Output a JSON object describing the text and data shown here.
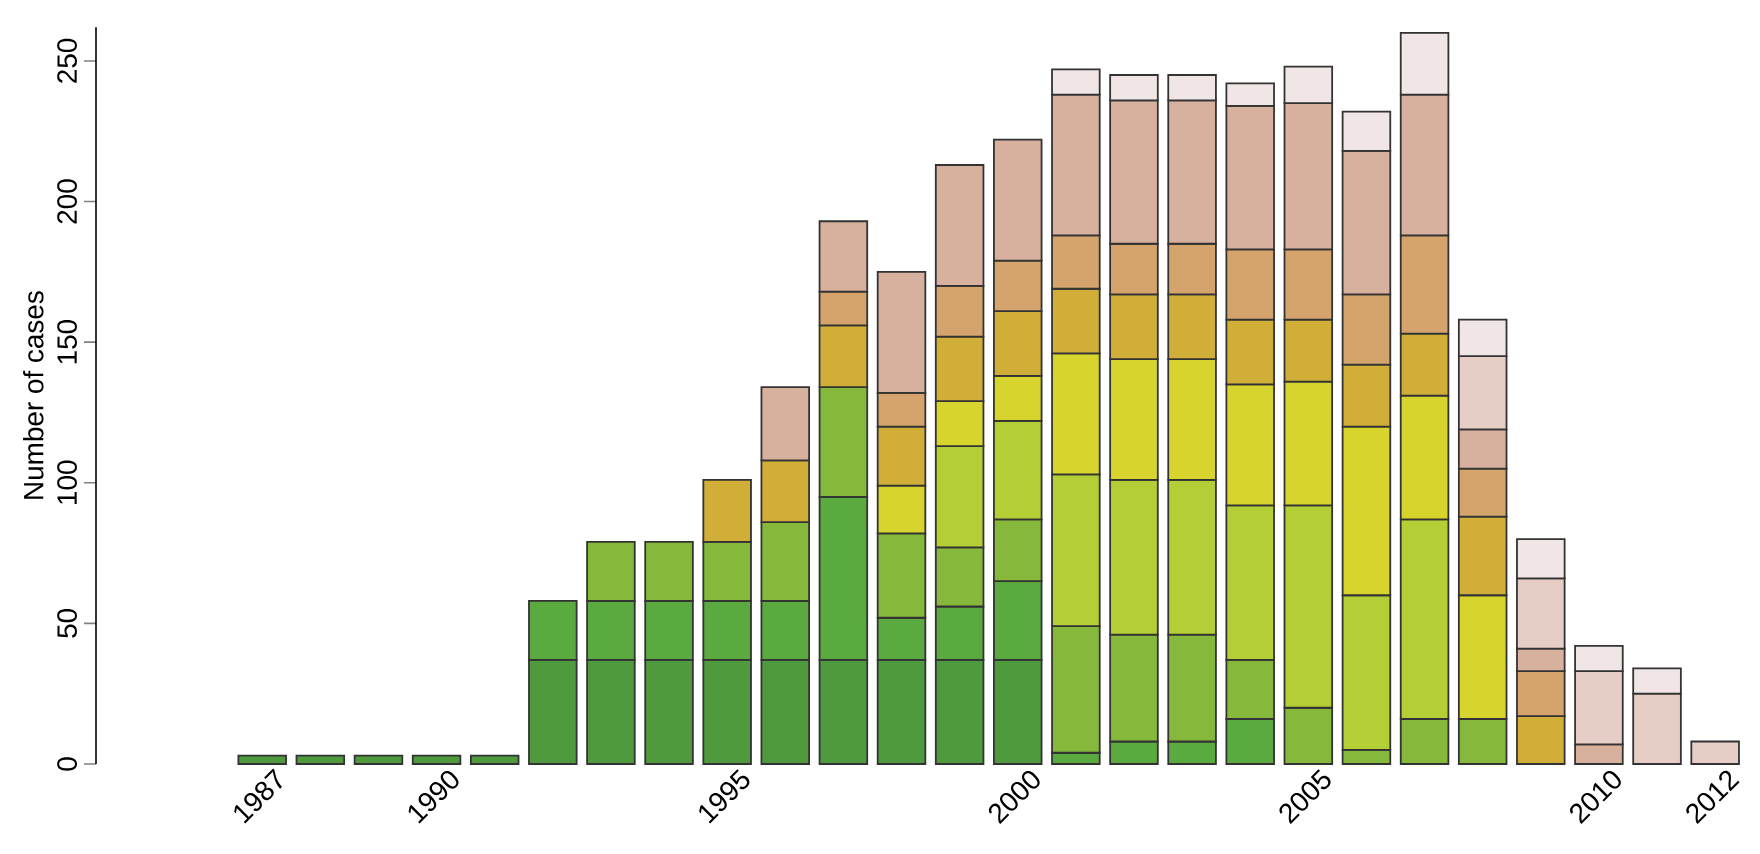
{
  "chart_data": {
    "type": "bar",
    "stacked": true,
    "ylabel": "Number of cases",
    "ylim": [
      0,
      262
    ],
    "yticks": [
      0,
      50,
      100,
      150,
      200,
      250
    ],
    "categories": [
      "1987",
      null,
      null,
      "1990",
      null,
      null,
      null,
      null,
      "1995",
      null,
      null,
      null,
      null,
      "2000",
      null,
      null,
      null,
      null,
      "2005",
      null,
      null,
      null,
      null,
      "2010",
      null,
      "2012"
    ],
    "series": [
      {
        "color": "#4e9a3c",
        "values": [
          3,
          3,
          3,
          3,
          3,
          37,
          37,
          37,
          37,
          37,
          37,
          37,
          37,
          37,
          null,
          null,
          null,
          null,
          null,
          null,
          null,
          null,
          null,
          null,
          null,
          null
        ]
      },
      {
        "color": "#5aaa40",
        "values": [
          null,
          null,
          null,
          null,
          null,
          21,
          21,
          21,
          21,
          21,
          58,
          15,
          19,
          28,
          4,
          8,
          8,
          16,
          null,
          null,
          null,
          null,
          null,
          null,
          null,
          null
        ]
      },
      {
        "color": "#86b83c",
        "values": [
          null,
          null,
          null,
          null,
          null,
          null,
          21,
          21,
          21,
          28,
          39,
          30,
          21,
          22,
          45,
          38,
          38,
          21,
          20,
          5,
          16,
          16,
          null,
          null,
          null,
          null
        ]
      },
      {
        "color": "#b4cf36",
        "values": [
          null,
          null,
          null,
          null,
          null,
          null,
          null,
          null,
          null,
          null,
          null,
          null,
          36,
          35,
          54,
          55,
          55,
          55,
          72,
          55,
          71,
          null,
          null,
          null,
          null,
          null
        ]
      },
      {
        "color": "#d8d42e",
        "values": [
          null,
          null,
          null,
          null,
          null,
          null,
          null,
          null,
          null,
          null,
          null,
          17,
          16,
          16,
          43,
          43,
          43,
          43,
          44,
          60,
          44,
          44,
          null,
          null,
          null,
          null
        ]
      },
      {
        "color": "#d0ae38",
        "values": [
          null,
          null,
          null,
          null,
          null,
          null,
          null,
          null,
          22,
          22,
          22,
          21,
          23,
          23,
          23,
          23,
          23,
          23,
          22,
          22,
          22,
          28,
          17,
          null,
          null,
          null
        ]
      },
      {
        "color": "#d4a46c",
        "values": [
          null,
          null,
          null,
          null,
          null,
          null,
          null,
          null,
          null,
          null,
          12,
          12,
          18,
          18,
          19,
          18,
          18,
          25,
          25,
          25,
          35,
          17,
          16,
          null,
          null,
          null
        ]
      },
      {
        "color": "#d8b09e",
        "values": [
          null,
          null,
          null,
          null,
          null,
          null,
          null,
          null,
          null,
          26,
          25,
          43,
          43,
          43,
          50,
          51,
          51,
          51,
          52,
          51,
          50,
          14,
          8,
          7,
          null,
          null
        ]
      },
      {
        "color": "#e6cdc6",
        "values": [
          null,
          null,
          null,
          null,
          null,
          null,
          null,
          null,
          null,
          null,
          null,
          null,
          null,
          null,
          null,
          null,
          null,
          null,
          null,
          null,
          null,
          26,
          25,
          26,
          25,
          8
        ]
      },
      {
        "color": "#f0e6e6",
        "values": [
          null,
          null,
          null,
          null,
          null,
          null,
          null,
          null,
          null,
          null,
          null,
          null,
          null,
          null,
          9,
          9,
          9,
          8,
          13,
          14,
          22,
          13,
          14,
          9,
          9,
          null
        ]
      }
    ]
  }
}
